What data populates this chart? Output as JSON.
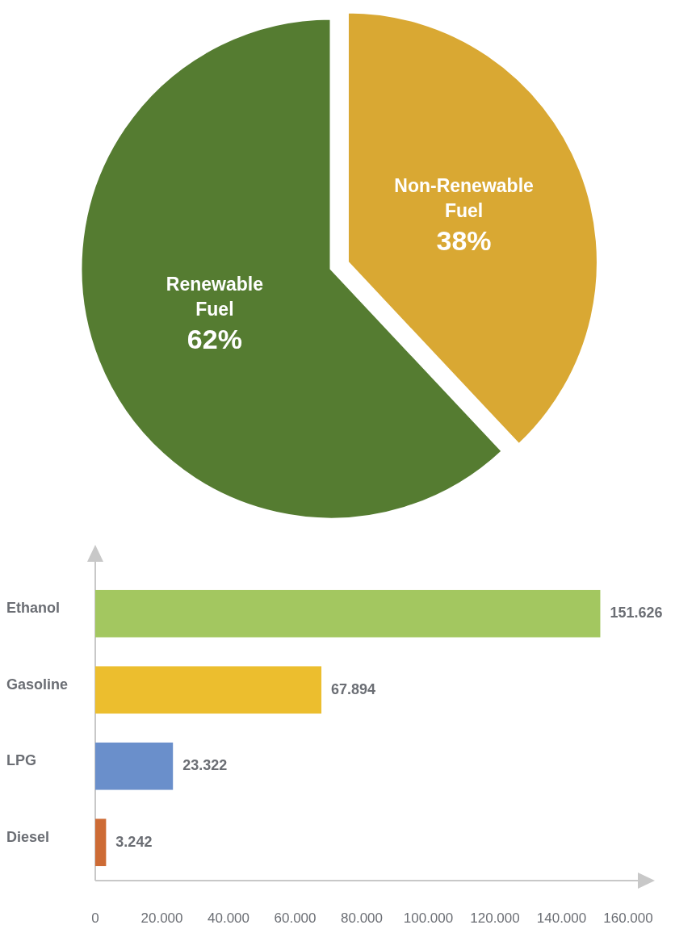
{
  "chart_data": [
    {
      "type": "pie",
      "categories": [
        "Non-Renewable Fuel",
        "Renewable Fuel"
      ],
      "values": [
        38,
        62
      ],
      "colors": [
        "#d9a833",
        "#557c31"
      ],
      "value_labels": [
        "38%",
        "62%"
      ]
    },
    {
      "type": "bar",
      "orientation": "horizontal",
      "categories": [
        "Ethanol",
        "Gasoline",
        "LPG",
        "Diesel"
      ],
      "values": [
        151626,
        67894,
        23322,
        3242
      ],
      "colors": [
        "#a3c760",
        "#ecbe2e",
        "#6a8fcb",
        "#cd6b35"
      ],
      "value_labels": [
        "151.626",
        "67.894",
        "23.322",
        "3.242"
      ],
      "xlim": [
        0,
        160000
      ],
      "xticks": [
        0,
        {
          "value": 20000,
          "label": "20.000"
        },
        {
          "value": 40000,
          "label": "40.000"
        },
        {
          "value": 60000,
          "label": "60.000"
        },
        {
          "value": 80000,
          "label": "80.000"
        },
        {
          "value": 100000,
          "label": "100.000"
        },
        {
          "value": 120000,
          "label": "120.000"
        },
        {
          "value": 140000,
          "label": "140.000"
        },
        {
          "value": 160000,
          "label": "160.000"
        }
      ]
    }
  ]
}
